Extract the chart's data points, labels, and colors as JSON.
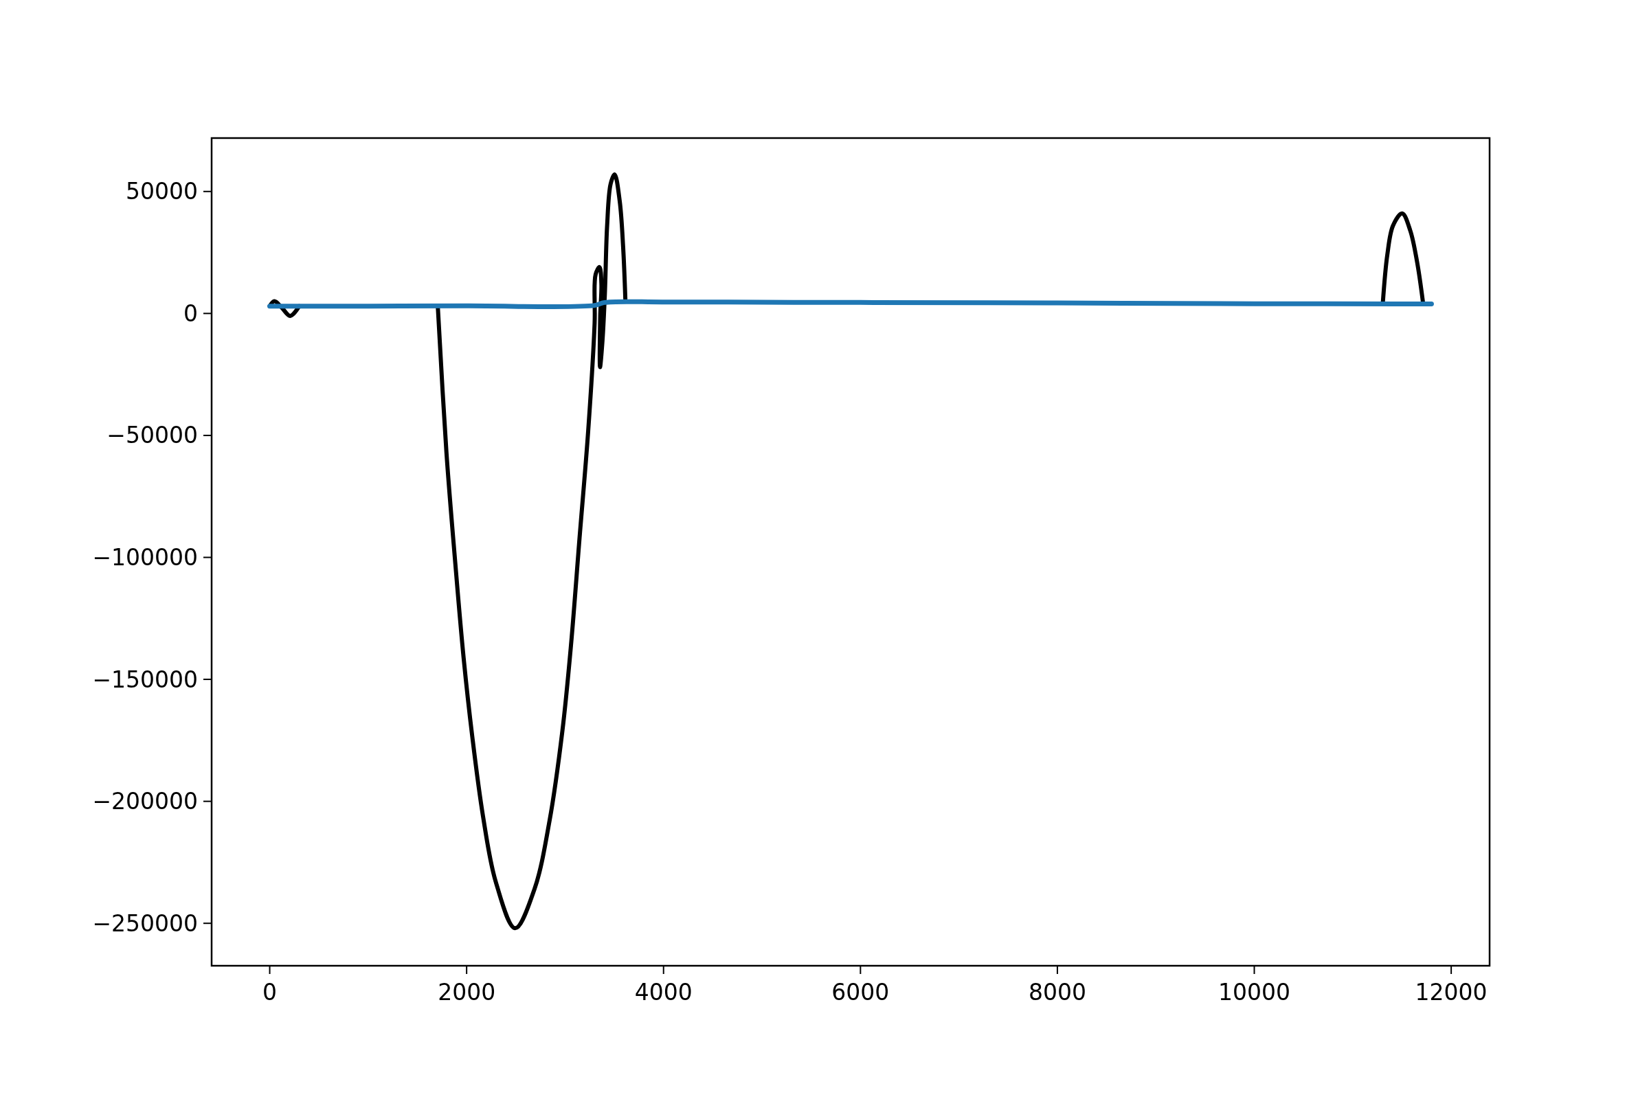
{
  "chart_data": {
    "type": "line",
    "xlim": [
      -590,
      12390
    ],
    "xticks": [
      0,
      2000,
      4000,
      6000,
      8000,
      10000,
      12000
    ],
    "ylim": [
      -267400,
      71900
    ],
    "yticks": [
      {
        "value": -250000,
        "label": "−250000"
      },
      {
        "value": -200000,
        "label": "−200000"
      },
      {
        "value": -150000,
        "label": "−150000"
      },
      {
        "value": -100000,
        "label": "−100000"
      },
      {
        "value": -50000,
        "label": "−50000"
      },
      0,
      50000
    ],
    "grid": false,
    "marker": "none",
    "line_style": "solid",
    "series": [
      {
        "color": "#000000",
        "x": [
          0,
          48,
          120,
          208,
          300
        ],
        "values": [
          3000,
          5000,
          2500,
          -1000,
          3000
        ]
      },
      {
        "color": "#000000",
        "x": [
          1707,
          1795,
          1882,
          1969,
          2056,
          2166,
          2296,
          2493,
          2689,
          2842,
          2973,
          3060,
          3147,
          3235,
          3300,
          3310,
          3350,
          3369,
          3357,
          3355,
          3380,
          3404,
          3427,
          3462,
          3503,
          3555,
          3590,
          3612
        ],
        "values": [
          3000,
          -57000,
          -101000,
          -141000,
          -173000,
          -206000,
          -233000,
          -252000,
          -236000,
          -208000,
          -171000,
          -136000,
          -92000,
          -48000,
          -4000,
          16000,
          19000,
          12000,
          -1000,
          -22000,
          -11000,
          8000,
          36000,
          53000,
          57000,
          46000,
          27000,
          6000
        ]
      },
      {
        "color": "#000000",
        "x": [
          11305,
          11351,
          11409,
          11502,
          11584,
          11654,
          11712
        ],
        "values": [
          4000,
          24000,
          36000,
          41000,
          34000,
          21000,
          5000
        ]
      },
      {
        "color": "#1f77b4",
        "x": [
          0,
          1000,
          2000,
          3300,
          3400,
          4000,
          5000,
          6000,
          8000,
          10000,
          11800
        ],
        "values": [
          3000,
          3000,
          3100,
          3300,
          4500,
          4700,
          4600,
          4500,
          4300,
          4000,
          3900
        ]
      }
    ]
  }
}
